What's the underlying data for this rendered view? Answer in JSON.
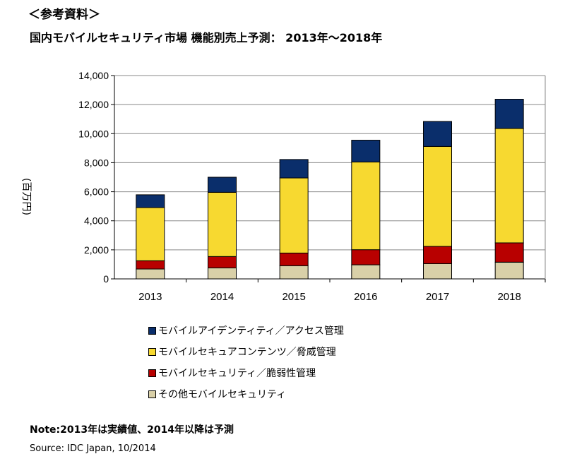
{
  "header": {
    "reference": "＜参考資料＞"
  },
  "chart_data": {
    "type": "bar",
    "stacked": true,
    "title": "国内モバイルセキュリティ市場 機能別売上予測： 2013年～2018年",
    "xlabel": "",
    "ylabel": "(百万円)",
    "ylim": [
      0,
      14000
    ],
    "yticks": [
      "0",
      "2,000",
      "4,000",
      "6,000",
      "8,000",
      "10,000",
      "12,000",
      "14,000"
    ],
    "grid": true,
    "legend_position": "bottom",
    "categories": [
      "2013",
      "2014",
      "2015",
      "2016",
      "2017",
      "2018"
    ],
    "series": [
      {
        "name": "その他モバイルセキュリティ",
        "color": "#d9d0a8",
        "values": [
          680,
          760,
          910,
          970,
          1050,
          1150
        ]
      },
      {
        "name": "モバイルセキュリティ／脆弱性管理",
        "color": "#b80000",
        "values": [
          570,
          780,
          870,
          1040,
          1190,
          1330
        ]
      },
      {
        "name": "モバイルセキュアコンテンツ／脅威管理",
        "color": "#f7d930",
        "values": [
          3660,
          4420,
          5170,
          6040,
          6880,
          7880
        ]
      },
      {
        "name": "モバイルアイデンティティ／アクセス管理",
        "color": "#0a2e6b",
        "values": [
          880,
          1040,
          1270,
          1500,
          1720,
          2010
        ]
      }
    ]
  },
  "footer": {
    "note": "Note:2013年は実績値、2014年以降は予測",
    "source": "Source: IDC Japan, 10/2014"
  }
}
